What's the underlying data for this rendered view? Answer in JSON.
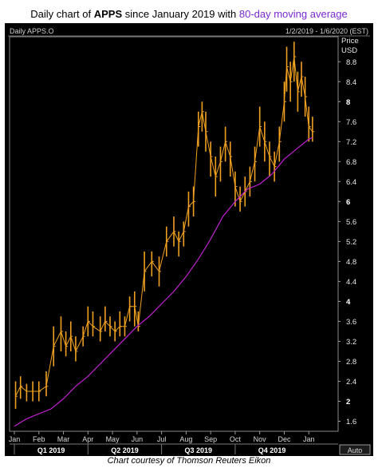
{
  "title": {
    "prefix": "Daily chart of ",
    "ticker": "APPS",
    "middle": " since January 2019 with ",
    "ma_text": "80-day moving average"
  },
  "caption": "Chart courtesy of Thomson Reuters Eikon",
  "colors": {
    "background": "#000000",
    "price_bars": "#f0a020",
    "moving_average": "#c020d0",
    "title_accent": "#7a2ad0"
  },
  "chart_data": {
    "type": "line",
    "instrument_label": "Daily APPS.O",
    "date_range_label": "1/2/2019 - 1/6/2020 (EST)",
    "yaxis_title": [
      "Price",
      "USD"
    ],
    "ylim": [
      1.4,
      9.3
    ],
    "yticks": [
      "1.6",
      "2",
      "2.4",
      "2.8",
      "3.2",
      "3.6",
      "4",
      "4.4",
      "4.8",
      "5.2",
      "5.6",
      "6",
      "6.4",
      "6.8",
      "7.2",
      "7.6",
      "8",
      "8.4",
      "8.8"
    ],
    "ytick_values": [
      1.6,
      2,
      2.4,
      2.8,
      3.2,
      3.6,
      4,
      4.4,
      4.8,
      5.2,
      5.6,
      6,
      6.4,
      6.8,
      7.2,
      7.6,
      8,
      8.4,
      8.8
    ],
    "major_yticks": [
      "2",
      "4",
      "6",
      "8"
    ],
    "xlim": [
      0,
      13
    ],
    "xticks": [
      "Jan",
      "Feb",
      "Mar",
      "Apr",
      "May",
      "Jun",
      "Jul",
      "Aug",
      "Sep",
      "Oct",
      "Nov",
      "Dec",
      "Jan"
    ],
    "quarters": [
      "Q1 2019",
      "Q2 2019",
      "Q3 2019",
      "Q4 2019"
    ],
    "auto_label": "Auto",
    "series": [
      {
        "style": "daily high-low bars",
        "x": [
          0.05,
          0.25,
          0.5,
          0.75,
          1.0,
          1.3,
          1.6,
          1.9,
          2.1,
          2.3,
          2.5,
          2.8,
          3.0,
          3.2,
          3.5,
          3.7,
          3.9,
          4.1,
          4.3,
          4.5,
          4.7,
          4.9,
          5.05,
          5.3,
          5.6,
          5.9,
          6.2,
          6.5,
          6.7,
          6.9,
          7.1,
          7.3,
          7.5,
          7.65,
          7.8,
          8.0,
          8.2,
          8.4,
          8.6,
          8.8,
          9.0,
          9.2,
          9.4,
          9.6,
          9.8,
          10.0,
          10.2,
          10.4,
          10.6,
          10.8,
          11.0,
          11.1,
          11.25,
          11.4,
          11.55,
          11.7,
          11.85,
          12.0,
          12.15
        ],
        "y": [
          2.1,
          2.3,
          2.2,
          2.2,
          2.2,
          2.3,
          3.1,
          3.4,
          3.1,
          3.3,
          3.0,
          3.3,
          3.6,
          3.5,
          3.4,
          3.6,
          3.5,
          3.4,
          3.5,
          3.5,
          3.9,
          3.9,
          3.5,
          4.6,
          4.8,
          4.6,
          5.2,
          5.4,
          5.2,
          5.4,
          5.9,
          6.0,
          7.5,
          7.8,
          7.4,
          6.9,
          6.5,
          6.8,
          7.2,
          6.9,
          6.3,
          6.0,
          6.2,
          6.4,
          6.8,
          7.5,
          7.2,
          6.9,
          6.7,
          7.2,
          8.0,
          8.7,
          8.4,
          8.9,
          8.2,
          8.5,
          8.1,
          7.5,
          7.4
        ],
        "low": [
          1.85,
          2.05,
          2.0,
          2.0,
          2.0,
          2.1,
          2.7,
          3.0,
          2.9,
          3.0,
          2.8,
          3.1,
          3.3,
          3.3,
          3.2,
          3.4,
          3.3,
          3.2,
          3.3,
          3.3,
          3.6,
          3.5,
          3.4,
          4.2,
          4.5,
          4.3,
          4.9,
          5.1,
          4.9,
          5.1,
          5.5,
          5.7,
          7.1,
          7.4,
          7.0,
          6.5,
          6.1,
          6.4,
          6.8,
          6.5,
          5.9,
          5.8,
          5.9,
          6.1,
          6.4,
          7.1,
          6.8,
          6.5,
          6.4,
          6.8,
          7.6,
          8.2,
          8.0,
          8.4,
          7.8,
          8.1,
          7.7,
          7.2,
          7.2
        ],
        "high": [
          2.4,
          2.5,
          2.35,
          2.4,
          2.4,
          2.6,
          3.5,
          3.7,
          3.4,
          3.6,
          3.3,
          3.5,
          3.9,
          3.8,
          3.7,
          3.9,
          3.7,
          3.6,
          3.8,
          3.7,
          4.1,
          4.2,
          3.8,
          5.0,
          5.0,
          4.9,
          5.5,
          5.7,
          5.4,
          5.6,
          6.2,
          6.3,
          7.8,
          8.0,
          7.8,
          7.2,
          6.9,
          7.1,
          7.5,
          7.2,
          6.6,
          6.3,
          6.5,
          6.7,
          7.1,
          7.9,
          7.6,
          7.2,
          7.0,
          7.5,
          8.4,
          9.1,
          8.8,
          9.2,
          8.6,
          8.8,
          8.5,
          7.9,
          7.7
        ]
      },
      {
        "name": "80-day moving average",
        "x": [
          0,
          0.5,
          1.0,
          1.5,
          2.0,
          2.5,
          3.0,
          3.5,
          4.0,
          4.5,
          5.0,
          5.5,
          6.0,
          6.5,
          7.0,
          7.5,
          8.0,
          8.5,
          9.0,
          9.5,
          10.0,
          10.5,
          11.0,
          11.5,
          12.0,
          12.15
        ],
        "y": [
          1.5,
          1.65,
          1.75,
          1.85,
          2.05,
          2.3,
          2.5,
          2.75,
          3.0,
          3.25,
          3.5,
          3.7,
          3.95,
          4.2,
          4.5,
          4.85,
          5.25,
          5.7,
          6.0,
          6.25,
          6.35,
          6.55,
          6.85,
          7.05,
          7.25,
          7.28
        ]
      }
    ]
  }
}
